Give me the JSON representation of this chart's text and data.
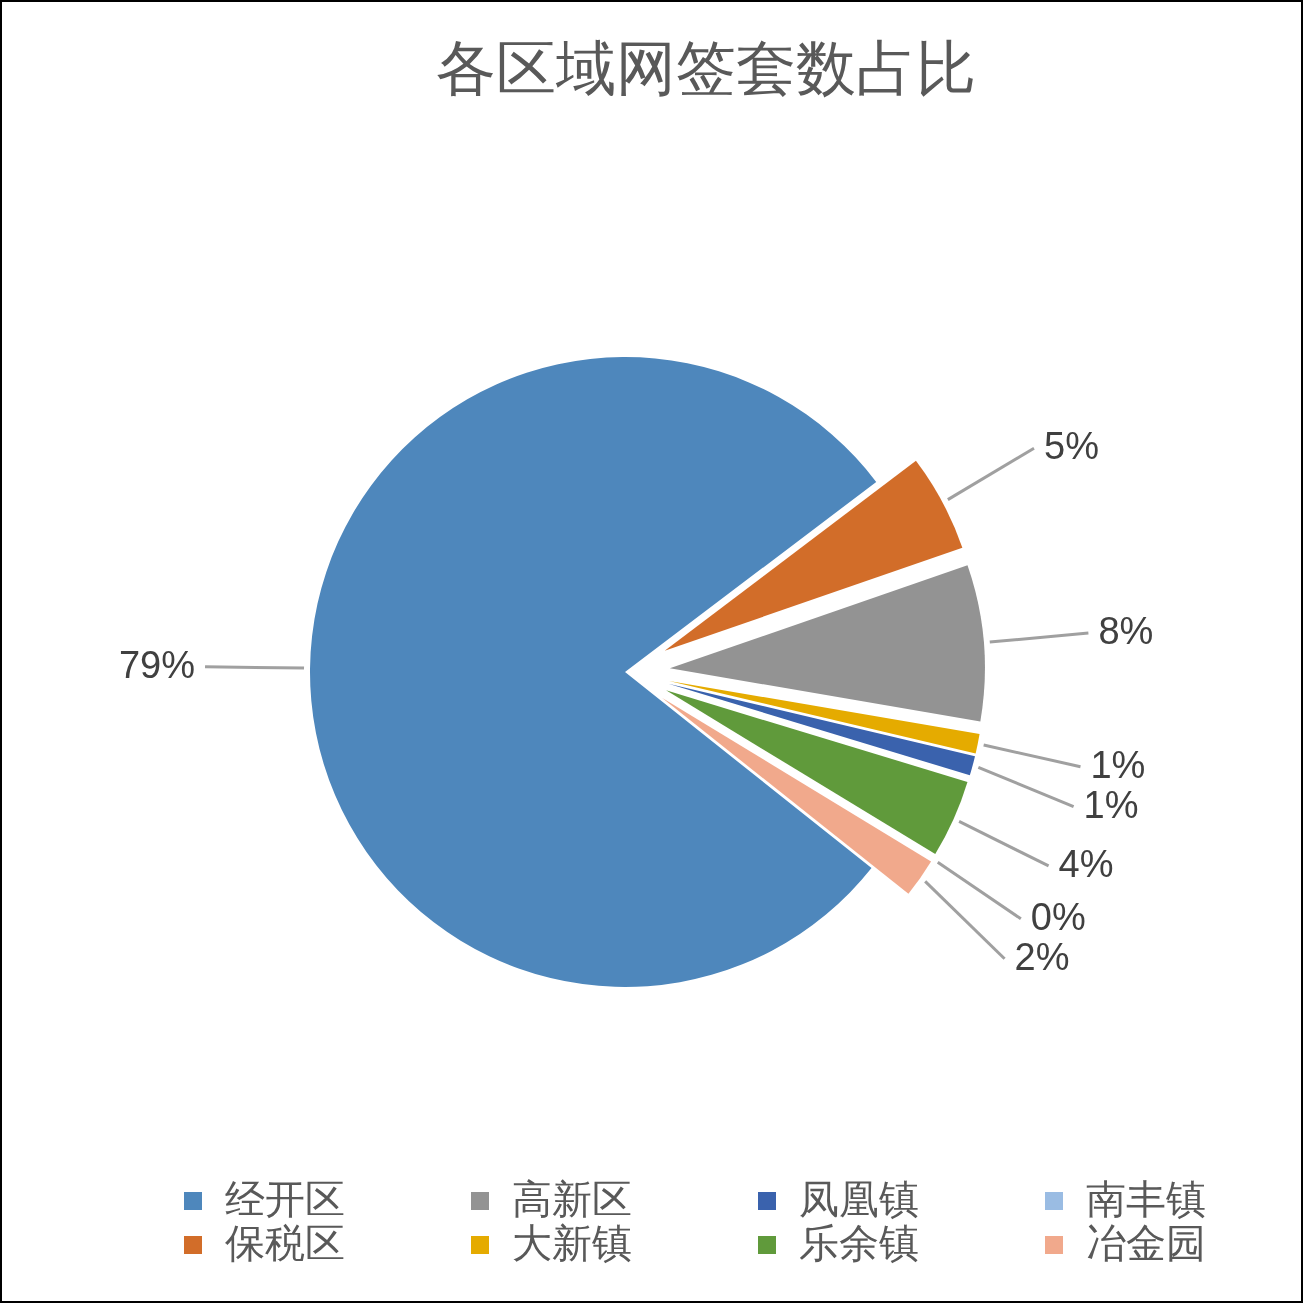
{
  "chart_data": {
    "type": "pie",
    "title": "各区域网签套数占比",
    "categories": [
      "经开区",
      "保税区",
      "高新区",
      "大新镇",
      "凤凰镇",
      "乐余镇",
      "南丰镇",
      "冶金园"
    ],
    "values": [
      79,
      5,
      8,
      1,
      1,
      4,
      0,
      2
    ],
    "colors": [
      "#4e87bc",
      "#d26d29",
      "#939393",
      "#e5ab00",
      "#3a62ad",
      "#609a3b",
      "#9abce3",
      "#f1a98c"
    ],
    "value_labels": [
      "79%",
      "5%",
      "8%",
      "1%",
      "1%",
      "4%",
      "0%",
      "2%"
    ],
    "legend": "bottom"
  }
}
